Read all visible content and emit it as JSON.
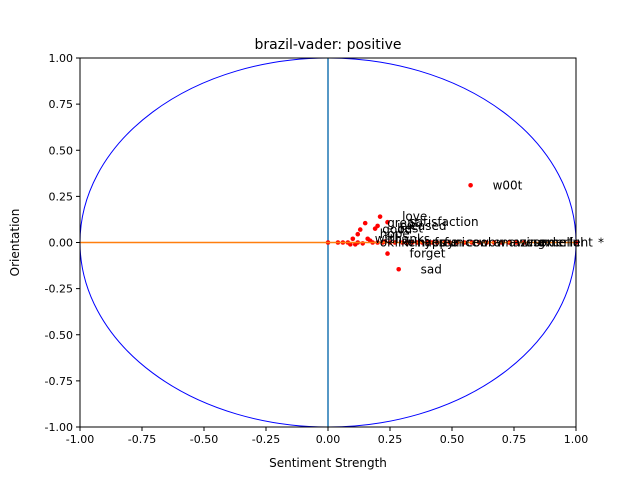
{
  "chart_data": {
    "type": "scatter",
    "title": "brazil-vader: positive",
    "xlabel": "Sentiment Strength",
    "ylabel": "Orientation",
    "xlim": [
      -1.0,
      1.0
    ],
    "ylim": [
      -1.0,
      1.0
    ],
    "xticks": [
      "-1.00",
      "-0.75",
      "-0.50",
      "-0.25",
      "0.00",
      "0.25",
      "0.50",
      "0.75",
      "1.00"
    ],
    "yticks": [
      "-1.00",
      "-0.75",
      "-0.50",
      "-0.25",
      "0.00",
      "0.25",
      "0.50",
      "0.75",
      "1.00"
    ],
    "grid": false,
    "legend": "none",
    "unit_circle": {
      "radius": 1.0,
      "color": "#0000ff"
    },
    "horizontal_line": {
      "y": 0.0,
      "color": "#ff7f0e"
    },
    "vertical_line": {
      "x": 0.0,
      "color": "#1f77b4"
    },
    "marker_color": "#ff0000",
    "labeled_points": [
      {
        "label": "w00t",
        "x": 0.575,
        "y": 0.31
      },
      {
        "label": "love",
        "x": 0.21,
        "y": 0.14
      },
      {
        "label": "satisfaction",
        "x": 0.24,
        "y": 0.11
      },
      {
        "label": "great",
        "x": 0.15,
        "y": 0.105
      },
      {
        "label": "pleased",
        "x": 0.2,
        "y": 0.09
      },
      {
        "label": "best",
        "x": 0.19,
        "y": 0.075
      },
      {
        "label": "good",
        "x": 0.13,
        "y": 0.07
      },
      {
        "label": "hope",
        "x": 0.12,
        "y": 0.045
      },
      {
        "label": "well",
        "x": 0.1,
        "y": 0.02
      },
      {
        "label": "thanks",
        "x": 0.16,
        "y": 0.02
      },
      {
        "label": "ok",
        "x": 0.12,
        "y": 0.0
      },
      {
        "label": "like",
        "x": 0.18,
        "y": 0.0
      },
      {
        "label": "win",
        "x": 0.22,
        "y": 0.0
      },
      {
        "label": "happy",
        "x": 0.27,
        "y": 0.0
      },
      {
        "label": "yes",
        "x": 0.3,
        "y": 0.0
      },
      {
        "label": "free",
        "x": 0.34,
        "y": 0.0
      },
      {
        "label": "fun",
        "x": 0.38,
        "y": 0.0
      },
      {
        "label": "nice",
        "x": 0.42,
        "y": 0.0
      },
      {
        "label": "cool",
        "x": 0.47,
        "y": 0.0
      },
      {
        "label": "wow",
        "x": 0.52,
        "y": 0.0
      },
      {
        "label": "amazing",
        "x": 0.58,
        "y": 0.0
      },
      {
        "label": "awesome",
        "x": 0.64,
        "y": 0.0
      },
      {
        "label": "wonderful",
        "x": 0.7,
        "y": 0.0
      },
      {
        "label": "excellent",
        "x": 0.76,
        "y": 0.0
      },
      {
        "label": "forget",
        "x": 0.24,
        "y": -0.06
      },
      {
        "label": "sad",
        "x": 0.285,
        "y": -0.145
      },
      {
        "label": "*",
        "x": 1.0,
        "y": 0.0
      }
    ],
    "unlabeled_points": [
      {
        "x": 0.0,
        "y": 0.0
      },
      {
        "x": 0.04,
        "y": 0.0
      },
      {
        "x": 0.06,
        "y": 0.0
      },
      {
        "x": 0.08,
        "y": 0.0
      },
      {
        "x": 0.09,
        "y": -0.01
      },
      {
        "x": 0.11,
        "y": -0.01
      },
      {
        "x": 0.14,
        "y": -0.005
      },
      {
        "x": 0.17,
        "y": 0.01
      },
      {
        "x": 0.2,
        "y": 0.0
      },
      {
        "x": 0.23,
        "y": 0.005
      },
      {
        "x": 0.25,
        "y": 0.0
      },
      {
        "x": 0.32,
        "y": 0.0
      },
      {
        "x": 0.36,
        "y": 0.0
      },
      {
        "x": 0.4,
        "y": 0.0
      },
      {
        "x": 0.44,
        "y": 0.0
      },
      {
        "x": 0.49,
        "y": 0.0
      },
      {
        "x": 0.55,
        "y": 0.0
      },
      {
        "x": 0.61,
        "y": 0.0
      },
      {
        "x": 0.67,
        "y": 0.0
      },
      {
        "x": 0.73,
        "y": 0.0
      },
      {
        "x": 0.79,
        "y": 0.0
      }
    ]
  }
}
